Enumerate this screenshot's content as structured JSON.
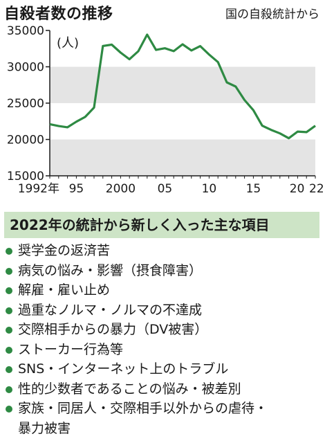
{
  "title": "自殺者数の推移",
  "source": "国の自殺統計から",
  "chart_data": {
    "type": "line",
    "unit_label": "(人)",
    "ylim": [
      15000,
      35000
    ],
    "yticks": [
      15000,
      20000,
      25000,
      30000,
      35000
    ],
    "xlim": [
      1992,
      2022
    ],
    "xtick_labels": [
      {
        "x": 1992,
        "label": "1992年"
      },
      {
        "x": 1995,
        "label": "95"
      },
      {
        "x": 2000,
        "label": "2000"
      },
      {
        "x": 2005,
        "label": "05"
      },
      {
        "x": 2010,
        "label": "10"
      },
      {
        "x": 2015,
        "label": "15"
      },
      {
        "x": 2020,
        "label": "20"
      },
      {
        "x": 2022,
        "label": "22"
      }
    ],
    "x": [
      1992,
      1993,
      1994,
      1995,
      1996,
      1997,
      1998,
      1999,
      2000,
      2001,
      2002,
      2003,
      2004,
      2005,
      2006,
      2007,
      2008,
      2009,
      2010,
      2011,
      2012,
      2013,
      2014,
      2015,
      2016,
      2017,
      2018,
      2019,
      2020,
      2021,
      2022
    ],
    "y": [
      22104,
      21851,
      21679,
      22445,
      23104,
      24391,
      32863,
      33048,
      31957,
      31042,
      32143,
      34427,
      32325,
      32552,
      32155,
      33093,
      32249,
      32845,
      31690,
      30651,
      27858,
      27283,
      25427,
      24025,
      21897,
      21321,
      20840,
      20169,
      21081,
      21007,
      21881
    ],
    "colors": {
      "line": "#2e8a43",
      "band": "#e4e4e4",
      "axis": "#1a1a1a"
    }
  },
  "section": {
    "heading": "2022年の統計から新しく入った主な項目",
    "items": [
      "奨学金の返済苦",
      "病気の悩み・影響（摂食障害）",
      "解雇・雇い止め",
      "過重なノルマ・ノルマの不達成",
      "交際相手からの暴力（DV被害）",
      "ストーカー行為等",
      "SNS・インターネット上のトラブル",
      "性的少数者であることの悩み・被差別",
      "家族・同居人・交際相手以外からの虐待・",
      "暴力被害"
    ],
    "bullet_color": "#2e8a43",
    "heading_bg": "#cde4c6"
  }
}
